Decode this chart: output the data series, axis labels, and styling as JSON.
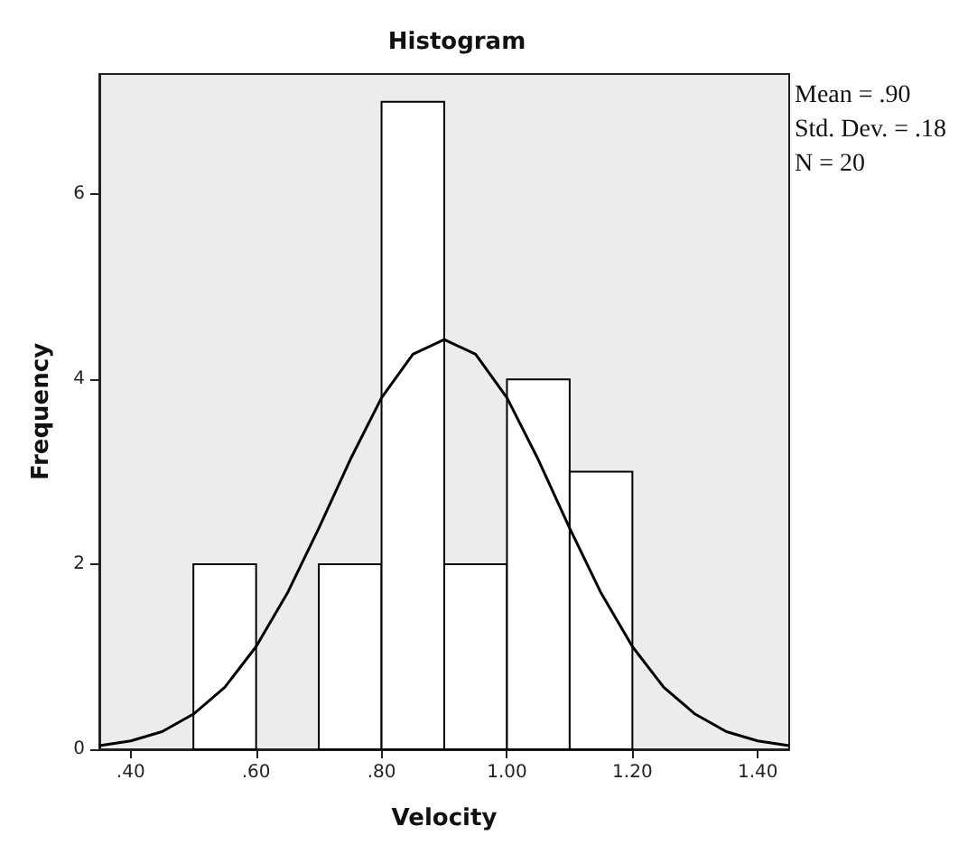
{
  "chart_data": {
    "type": "histogram",
    "title": "Histogram",
    "xlabel": "Velocity",
    "ylabel": "Frequency",
    "bins": [
      0.5,
      0.6,
      0.7,
      0.8,
      0.9,
      1.0,
      1.1,
      1.2
    ],
    "series": [
      {
        "color": "#ffffff",
        "values": [
          2,
          0,
          2,
          7,
          2,
          4,
          3
        ]
      },
      {
        "type": "line",
        "color": "#000000",
        "x": [
          0.35,
          0.4,
          0.45,
          0.5,
          0.55,
          0.6,
          0.65,
          0.7,
          0.75,
          0.8,
          0.85,
          0.9,
          0.95,
          1.0,
          1.05,
          1.1,
          1.15,
          1.2,
          1.25,
          1.3,
          1.35,
          1.4,
          1.45
        ],
        "values": [
          0.04,
          0.09,
          0.19,
          0.38,
          0.67,
          1.11,
          1.69,
          2.39,
          3.13,
          3.8,
          4.27,
          4.43,
          4.27,
          3.8,
          3.13,
          2.39,
          1.69,
          1.11,
          0.67,
          0.38,
          0.19,
          0.09,
          0.04
        ]
      }
    ],
    "xlim": [
      0.35,
      1.45
    ],
    "xticks": [
      {
        "value": 0.4,
        "label": ".40"
      },
      {
        "value": 0.6,
        "label": ".60"
      },
      {
        "value": 0.8,
        "label": ".80"
      },
      {
        "value": 1.0,
        "label": "1.00"
      },
      {
        "value": 1.2,
        "label": "1.20"
      },
      {
        "value": 1.4,
        "label": "1.40"
      }
    ],
    "ylim": [
      0,
      7.3
    ],
    "yticks": [
      0,
      2,
      4,
      6
    ],
    "grid": false,
    "marker": "none",
    "line_style": "solid",
    "annotations": [
      "Mean = .90",
      "Std. Dev. = .18",
      "N = 20"
    ]
  }
}
